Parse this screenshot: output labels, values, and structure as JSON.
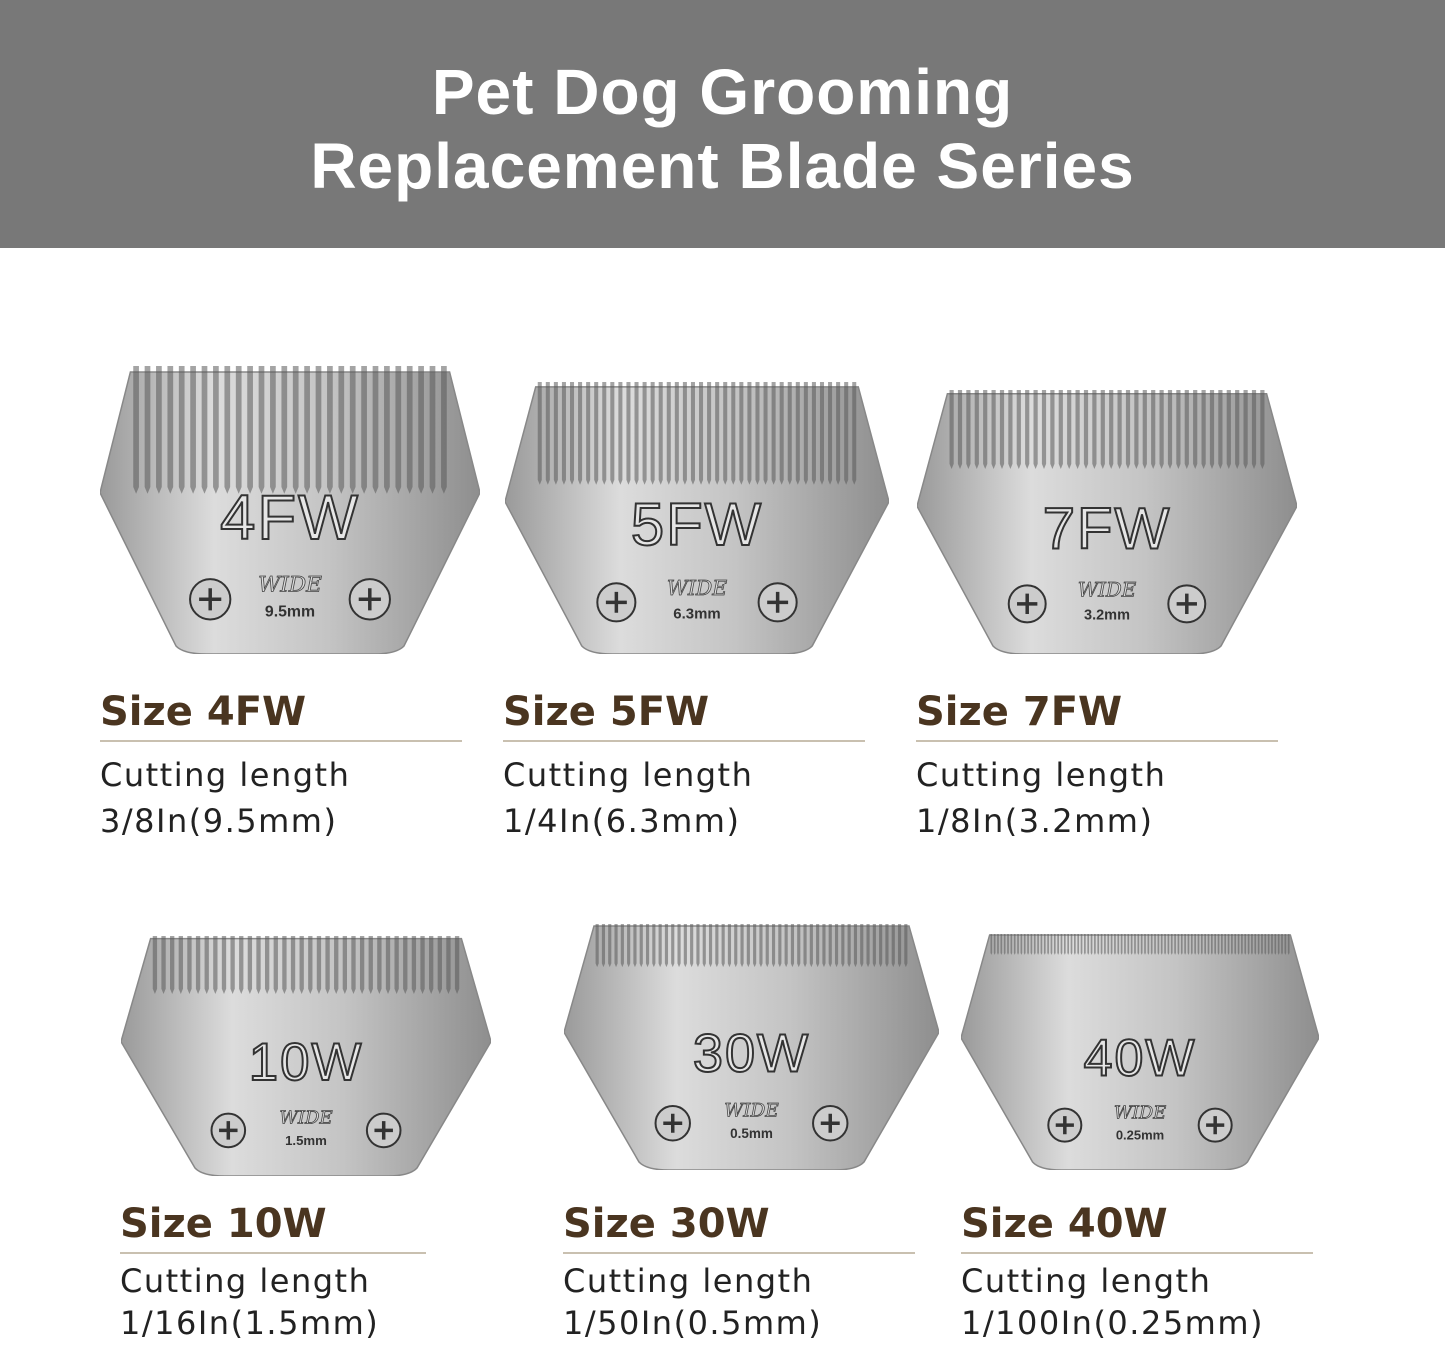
{
  "header": {
    "title_line1": "Pet Dog Grooming",
    "title_line2": "Replacement Blade Series",
    "background_color": "#787878"
  },
  "accent_color": "#4a3520",
  "blades": [
    {
      "code": "4FW",
      "engraving": "WIDE",
      "mm": "9.5mm",
      "size_label": "Size 4FW",
      "cutting_label": "Cutting length",
      "length": "3/8In(9.5mm)"
    },
    {
      "code": "5FW",
      "engraving": "WIDE",
      "mm": "6.3mm",
      "size_label": "Size 5FW",
      "cutting_label": "Cutting length",
      "length": "1/4In(6.3mm)"
    },
    {
      "code": "7FW",
      "engraving": "WIDE",
      "mm": "3.2mm",
      "size_label": "Size 7FW",
      "cutting_label": "Cutting length",
      "length": "1/8In(3.2mm)"
    },
    {
      "code": "10W",
      "engraving": "WIDE",
      "mm": "1.5mm",
      "size_label": "Size 10W",
      "cutting_label": "Cutting length",
      "length": "1/16In(1.5mm)"
    },
    {
      "code": "30W",
      "engraving": "WIDE",
      "mm": "0.5mm",
      "size_label": "Size 30W",
      "cutting_label": "Cutting length",
      "length": "1/50In(0.5mm)"
    },
    {
      "code": "40W",
      "engraving": "WIDE",
      "mm": "0.25mm",
      "size_label": "Size 40W",
      "cutting_label": "Cutting length",
      "length": "1/100In(0.25mm)"
    }
  ]
}
